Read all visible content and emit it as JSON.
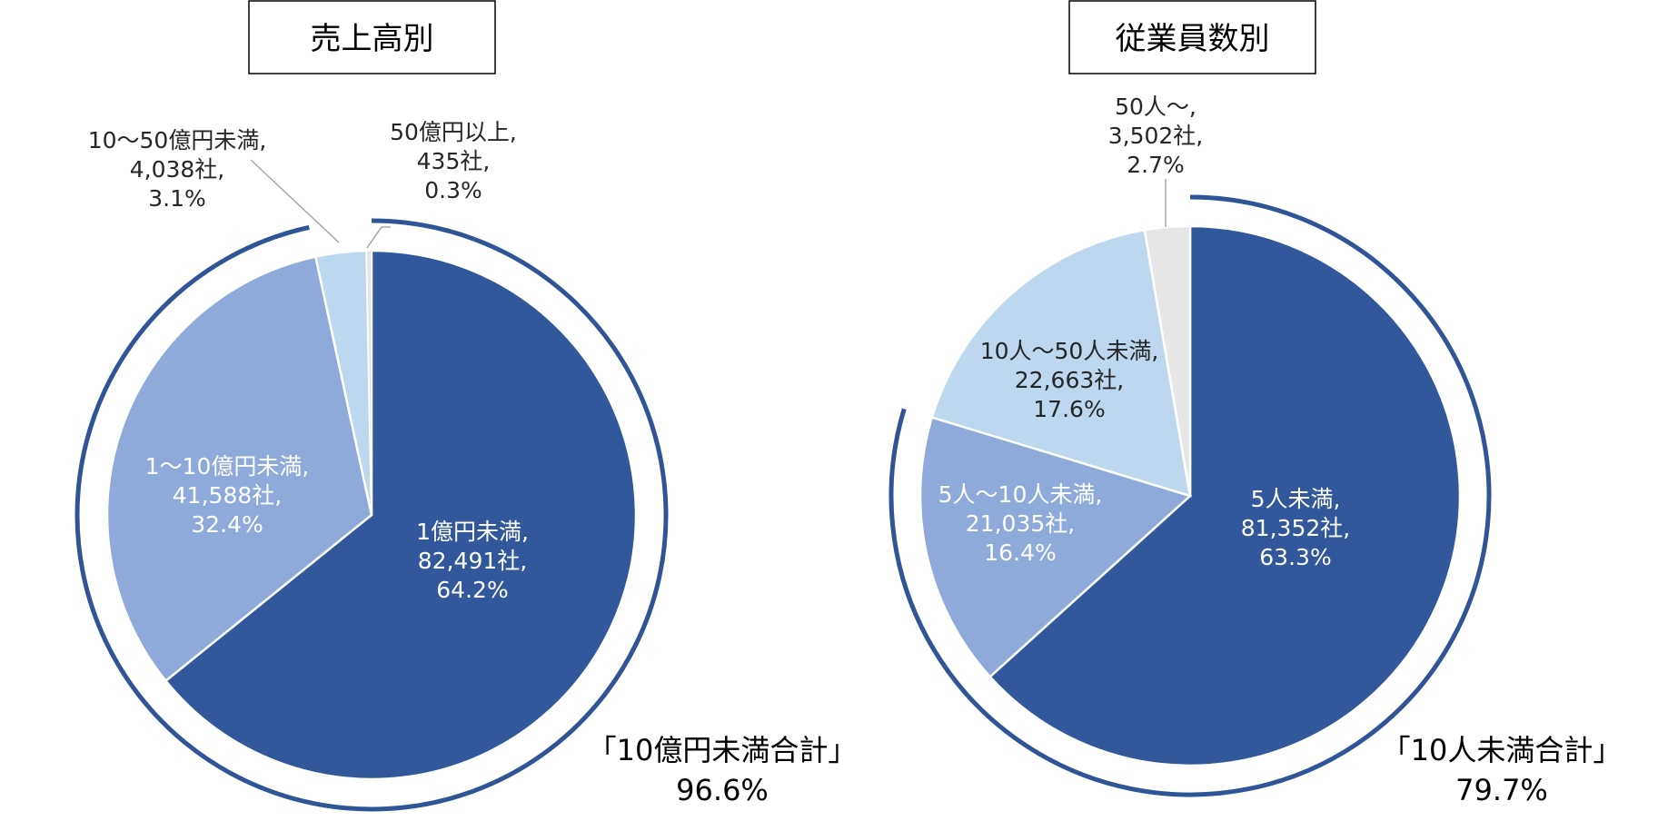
{
  "colors": {
    "dark_blue": "#30589a",
    "mid_blue": "#8eaadb",
    "light_blue": "#bdd7ee",
    "grey": "#e6e6e6",
    "ring": "#2f5597"
  },
  "chart_data": [
    {
      "type": "pie",
      "title": "売上高別",
      "slices": [
        {
          "label": "1億円未満,",
          "count": "82,491社,",
          "pct": "64.2%",
          "value": 64.2,
          "color": "#30589a"
        },
        {
          "label": "1～10億円未満,",
          "count": "41,588社,",
          "pct": "32.4%",
          "value": 32.4,
          "color": "#8eaadb"
        },
        {
          "label": "10～50億円未満,",
          "count": "4,038社,",
          "pct": "3.1%",
          "value": 3.1,
          "color": "#bdd7ee"
        },
        {
          "label": "50億円以上,",
          "count": "435社,",
          "pct": "0.3%",
          "value": 0.3,
          "color": "#e6e6e6"
        }
      ],
      "summary": {
        "label": "「10億円未満合計」",
        "value": "96.6%"
      }
    },
    {
      "type": "pie",
      "title": "従業員数別",
      "slices": [
        {
          "label": "5人未満,",
          "count": "81,352社,",
          "pct": "63.3%",
          "value": 63.3,
          "color": "#30589a"
        },
        {
          "label": "5人～10人未満,",
          "count": "21,035社,",
          "pct": "16.4%",
          "value": 16.4,
          "color": "#8eaadb"
        },
        {
          "label": "10人～50人未満,",
          "count": "22,663社,",
          "pct": "17.6%",
          "value": 17.6,
          "color": "#bdd7ee"
        },
        {
          "label": "50人～,",
          "count": "3,502社,",
          "pct": "2.7%",
          "value": 2.7,
          "color": "#e6e6e6"
        }
      ],
      "summary": {
        "label": "「10人未満合計」",
        "value": "79.7%"
      }
    }
  ]
}
